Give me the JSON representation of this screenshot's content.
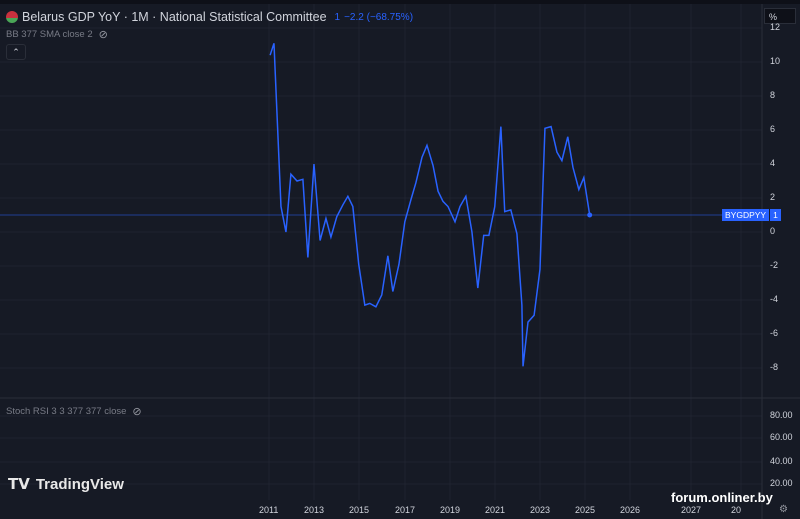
{
  "header": {
    "title": "Belarus GDP YoY · 1M · National Statistical Committee",
    "last": "1",
    "change": "−2.2 (−68.75%)"
  },
  "indicators": {
    "bb": "BB 377 SMA close 2",
    "stoch": "Stoch RSI 3 3 377 377 close"
  },
  "price_axis": {
    "unit": "%",
    "ticks": [
      "12",
      "10",
      "8",
      "6",
      "4",
      "2",
      "0",
      "-2",
      "-4",
      "-6",
      "-8"
    ]
  },
  "stoch_axis": {
    "ticks": [
      "80.00",
      "60.00",
      "40.00",
      "20.00"
    ]
  },
  "time_axis": {
    "ticks": [
      "2011",
      "2013",
      "2015",
      "2017",
      "2019",
      "2021",
      "2023",
      "2025",
      "2026",
      "2027",
      "20"
    ]
  },
  "last_label": {
    "symbol": "BYGDPYY",
    "value": "1"
  },
  "brand": {
    "logo": "TradingView",
    "watermark": "forum.onliner.by"
  },
  "colors": {
    "line": "#2962ff",
    "bg": "#161a25"
  },
  "chart_data": {
    "type": "line",
    "series": [
      {
        "name": "BYGDPYY",
        "x": [
          2011.05,
          2011.22,
          2011.53,
          2011.75,
          2011.97,
          2012.24,
          2012.5,
          2012.72,
          2012.99,
          2013.26,
          2013.52,
          2013.74,
          2014.0,
          2014.27,
          2014.49,
          2014.71,
          2014.97,
          2015.24,
          2015.46,
          2015.73,
          2015.99,
          2016.26,
          2016.48,
          2016.75,
          2017.01,
          2017.28,
          2017.5,
          2017.77,
          2017.99,
          2018.26,
          2018.48,
          2018.7,
          2018.92,
          2019.23,
          2019.45,
          2019.71,
          2019.98,
          2020.24,
          2020.5,
          2020.73,
          2020.99,
          2021.26,
          2021.43,
          2021.7,
          2021.97,
          2022.19,
          2022.24,
          2022.46,
          2022.73,
          2022.99,
          2023.21,
          2023.48,
          2023.74,
          2023.96,
          2024.22,
          2024.45,
          2024.71,
          2024.93,
          2025.19
        ],
        "y": [
          10.4,
          11.1,
          1.5,
          0,
          3.4,
          3.0,
          3.1,
          -1.5,
          4.0,
          -0.5,
          0.8,
          -0.3,
          0.9,
          1.6,
          2.1,
          1.5,
          -1.9,
          -4.3,
          -4.2,
          -4.4,
          -3.7,
          -1.4,
          -3.5,
          -1.9,
          0.6,
          1.9,
          2.9,
          4.4,
          5.1,
          3.9,
          2.4,
          1.8,
          1.5,
          0.6,
          1.5,
          2.1,
          0,
          -3.3,
          -0.2,
          -0.2,
          1.5,
          6.2,
          1.2,
          1.3,
          -0.1,
          -4.3,
          -7.9,
          -5.3,
          -4.9,
          -2.2,
          6.1,
          6.2,
          4.7,
          4.2,
          5.6,
          3.8,
          2.5,
          3.2,
          1.0
        ]
      }
    ],
    "ylim": [
      -9,
      12.5
    ],
    "xlabel": "",
    "ylabel": "%"
  }
}
